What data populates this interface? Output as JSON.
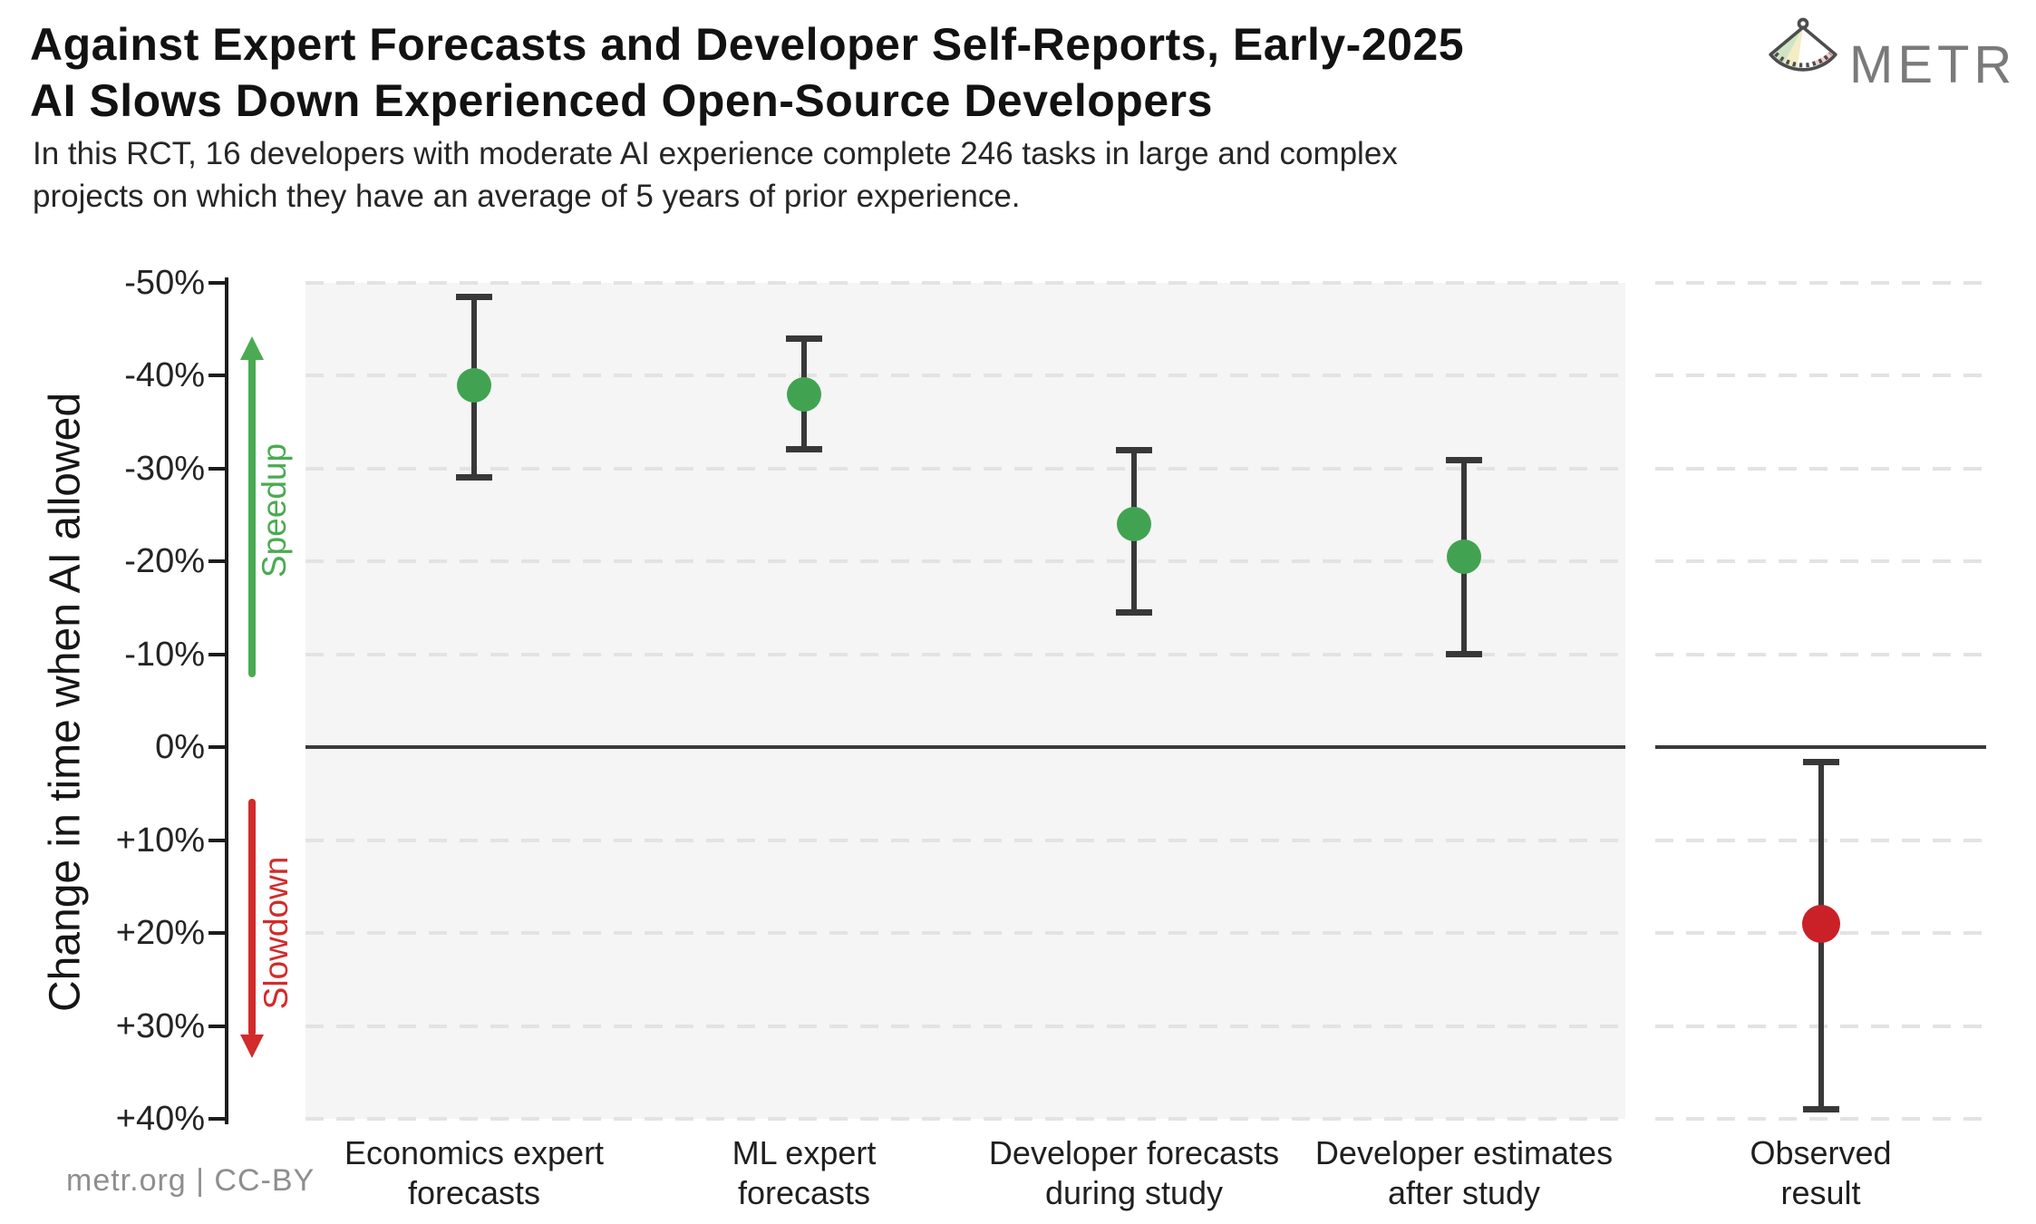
{
  "header": {
    "title_line1": "Against Expert Forecasts and Developer Self-Reports, Early-2025",
    "title_line2": "AI Slows Down Experienced Open-Source Developers",
    "subtitle_line1": "In this RCT, 16 developers with moderate AI experience complete 246 tasks in large and complex",
    "subtitle_line2": "projects on which they have an average of 5 years of prior experience.",
    "logo_text": "METR"
  },
  "footer": {
    "credit": "metr.org  |  CC-BY"
  },
  "colors": {
    "point_green": "#41a352",
    "point_red": "#c92127",
    "arrow_green": "#4aab52",
    "arrow_red": "#d22b2b",
    "errorbar": "#383838",
    "plot_background": "#f5f5f5",
    "gridline": "#e3e3e3",
    "zero_line": "#3a3a3a",
    "logo_green": "#cfe4c4",
    "logo_yellow": "#f3ecc4",
    "logo_pink": "#f6c9cd",
    "logo_outline": "#4d4d4d"
  },
  "chart_data": {
    "type": "scatter",
    "title": "Against Expert Forecasts and Developer Self-Reports, Early-2025 AI Slows Down Experienced Open-Source Developers",
    "subtitle": "In this RCT, 16 developers with moderate AI experience complete 246 tasks in large and complex projects on which they have an average of 5 years of prior experience.",
    "ylabel": "Change in time when AI allowed",
    "ylim": [
      -50,
      40
    ],
    "y_axis_inverted_display": "negative (speedup) at top, positive (slowdown) at bottom",
    "grid": "horizontal dashed lines every 10%, solid dark line at 0%",
    "yticks": [
      {
        "value": -50,
        "label": "-50%"
      },
      {
        "value": -40,
        "label": "-40%"
      },
      {
        "value": -30,
        "label": "-30%"
      },
      {
        "value": -20,
        "label": "-20%"
      },
      {
        "value": -10,
        "label": "-10%"
      },
      {
        "value": 0,
        "label": "0%"
      },
      {
        "value": 10,
        "label": "+10%"
      },
      {
        "value": 20,
        "label": "+20%"
      },
      {
        "value": 30,
        "label": "+30%"
      },
      {
        "value": 40,
        "label": "+40%"
      }
    ],
    "annotations": [
      {
        "text": "Speedup",
        "direction": "up",
        "color_key": "arrow_green",
        "range_pct": [
          -44,
          -8
        ]
      },
      {
        "text": "Slowdown",
        "direction": "down",
        "color_key": "arrow_red",
        "range_pct": [
          6,
          34
        ]
      }
    ],
    "series": [
      {
        "name": "economics-expert-forecasts",
        "label_line1": "Economics expert",
        "label_line2": "forecasts",
        "value": -39,
        "ci": [
          -48.5,
          -29
        ],
        "color_key": "point_green",
        "panel": "main",
        "slot": 0
      },
      {
        "name": "ml-expert-forecasts",
        "label_line1": "ML expert",
        "label_line2": "forecasts",
        "value": -38,
        "ci": [
          -44,
          -32
        ],
        "color_key": "point_green",
        "panel": "main",
        "slot": 1
      },
      {
        "name": "developer-forecasts-during-study",
        "label_line1": "Developer forecasts",
        "label_line2": "during study",
        "value": -24,
        "ci": [
          -32,
          -14.5
        ],
        "color_key": "point_green",
        "panel": "main",
        "slot": 2
      },
      {
        "name": "developer-estimates-after-study",
        "label_line1": "Developer estimates",
        "label_line2": "after study",
        "value": -20.5,
        "ci": [
          -31,
          -10
        ],
        "color_key": "point_green",
        "panel": "main",
        "slot": 3
      },
      {
        "name": "observed-result",
        "label_line1": "Observed",
        "label_line2": "result",
        "value": 19,
        "ci": [
          1.5,
          39
        ],
        "color_key": "point_red",
        "panel": "observed",
        "slot": 0
      }
    ]
  }
}
